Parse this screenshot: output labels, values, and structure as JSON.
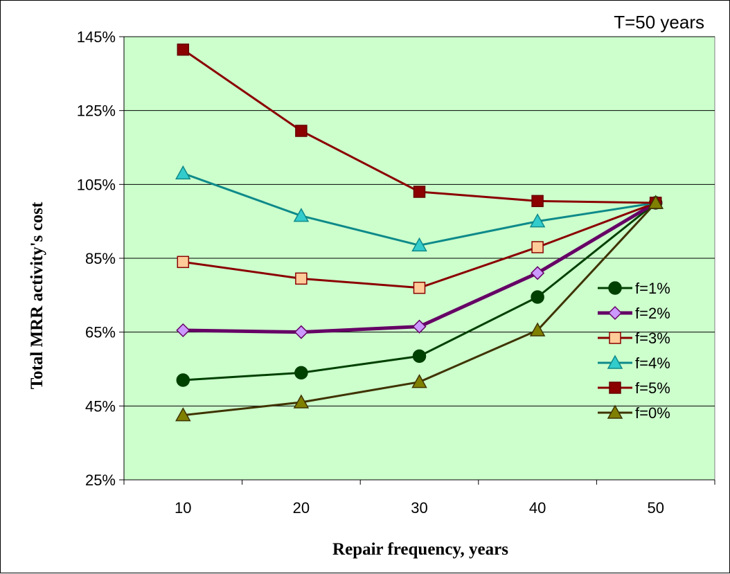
{
  "chart_data": {
    "type": "line",
    "title": "",
    "annotation": "T=50 years",
    "xlabel": "Repair frequency, years",
    "ylabel": "Total MRR activity's cost",
    "x": [
      10,
      20,
      30,
      40,
      50
    ],
    "x_tick_labels": [
      "10",
      "20",
      "30",
      "40",
      "50"
    ],
    "ylim": [
      25,
      145
    ],
    "y_ticks": [
      25,
      45,
      65,
      85,
      105,
      125,
      145
    ],
    "y_tick_labels": [
      "25%",
      "45%",
      "65%",
      "85%",
      "105%",
      "125%",
      "145%"
    ],
    "grid": "horizontal",
    "plot_background": "#CCFFCC",
    "legend_position": "right",
    "series": [
      {
        "name": "f=1%",
        "values": [
          52,
          54,
          58.5,
          74.5,
          100
        ],
        "color": "#004000",
        "marker": "circle",
        "marker_fill": "#004000",
        "marker_stroke": "#004000",
        "line_width": 3
      },
      {
        "name": "f=2%",
        "values": [
          65.5,
          65,
          66.5,
          81,
          100
        ],
        "color": "#660066",
        "marker": "diamond",
        "marker_fill": "#CC99FF",
        "marker_stroke": "#660066",
        "line_width": 5
      },
      {
        "name": "f=3%",
        "values": [
          84,
          79.5,
          77,
          88,
          100
        ],
        "color": "#8B0000",
        "marker": "square",
        "marker_fill": "#FFCC99",
        "marker_stroke": "#8B0000",
        "line_width": 3
      },
      {
        "name": "f=4%",
        "values": [
          108,
          96.5,
          88.5,
          95,
          100
        ],
        "color": "#0E8A8A",
        "marker": "triangle",
        "marker_fill": "#33CCCC",
        "marker_stroke": "#0E8A8A",
        "line_width": 3
      },
      {
        "name": "f=5%",
        "values": [
          141.5,
          119.5,
          103,
          100.5,
          100
        ],
        "color": "#8B0000",
        "marker": "square",
        "marker_fill": "#8B0000",
        "marker_stroke": "#660000",
        "line_width": 3
      },
      {
        "name": "f=0%",
        "values": [
          42.5,
          46,
          51.5,
          65.5,
          100
        ],
        "color": "#3F3300",
        "marker": "triangle",
        "marker_fill": "#808000",
        "marker_stroke": "#3F3300",
        "line_width": 3
      }
    ]
  }
}
